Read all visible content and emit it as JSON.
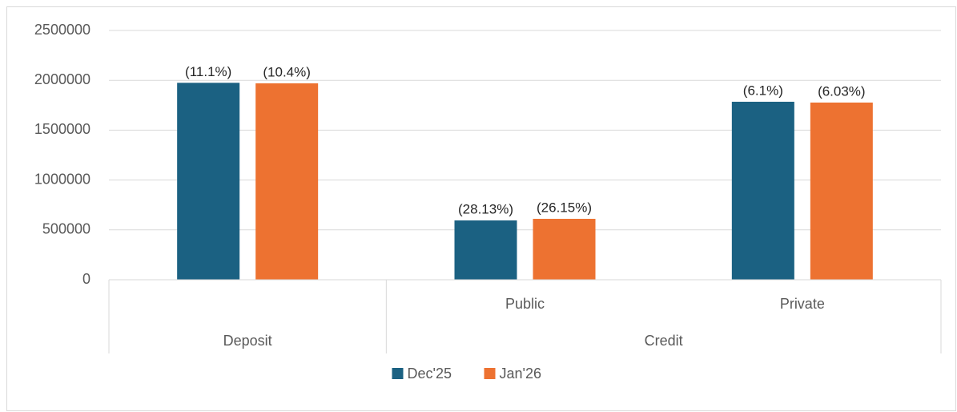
{
  "chart_data": {
    "type": "bar",
    "categories": [
      null,
      "Public",
      "Private"
    ],
    "groups": [
      {
        "name": "Deposit",
        "span": 1
      },
      {
        "name": "Credit",
        "span": 2
      }
    ],
    "series": [
      {
        "name": "Dec'25",
        "color": "#1b6182",
        "values": [
          1975000,
          595000,
          1785000
        ],
        "data_labels": [
          "(11.1%)",
          "(28.13%)",
          "(6.1%)"
        ]
      },
      {
        "name": "Jan'26",
        "color": "#ed7231",
        "values": [
          1970000,
          611000,
          1777000
        ],
        "data_labels": [
          "(10.4%)",
          "(26.15%)",
          "(6.03%)"
        ]
      }
    ],
    "ylim": [
      0,
      2500000
    ],
    "yticks": [
      0,
      500000,
      1000000,
      1500000,
      2000000,
      2500000
    ],
    "grid": true,
    "legend": "bottom"
  }
}
